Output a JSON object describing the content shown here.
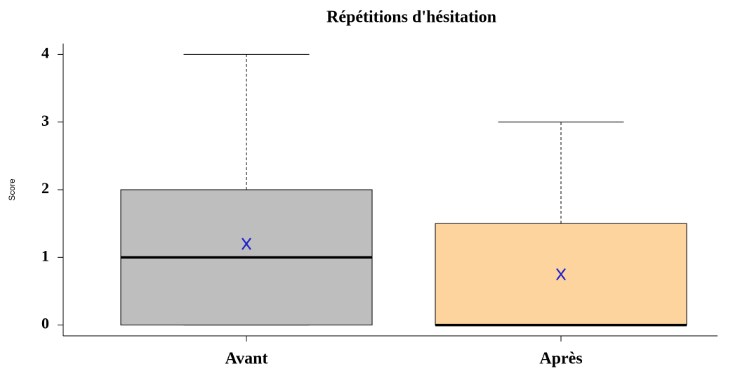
{
  "chart_data": {
    "type": "boxplot",
    "title": "Répétitions d'hésitation",
    "ylabel": "Score",
    "categories": [
      "Avant",
      "Après"
    ],
    "boxes": [
      {
        "min": 0,
        "q1": 0,
        "median": 1,
        "q3": 2,
        "max": 4,
        "mean": 1.2,
        "color": "#bebebe"
      },
      {
        "min": 0,
        "q1": 0,
        "median": 0,
        "q3": 1.5,
        "max": 3,
        "mean": 0.75,
        "color": "#fdd49e"
      }
    ],
    "mean_color": "#2222cc",
    "ylim": [
      -0.16,
      4.16
    ],
    "yticks": [
      0,
      1,
      2,
      3,
      4
    ]
  }
}
